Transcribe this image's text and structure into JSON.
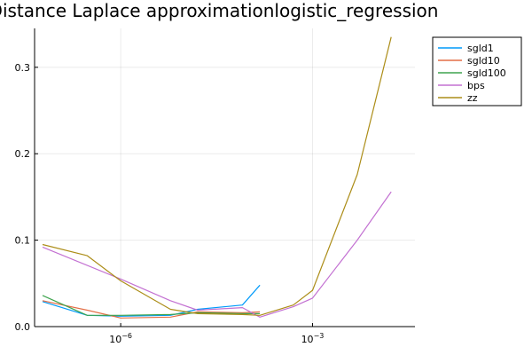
{
  "chart_data": {
    "type": "line",
    "title": "Distance Laplace approximationlogistic_regression",
    "xlabel": "",
    "ylabel": "",
    "x_scale": "log10",
    "xlim": [
      4.5e-08,
      0.04
    ],
    "ylim": [
      0,
      0.345
    ],
    "grid": true,
    "legend_position": "top-right",
    "x_ticks": [
      {
        "value": 1e-06,
        "base": "10",
        "exponent": "−6"
      },
      {
        "value": 0.001,
        "base": "10",
        "exponent": "−3"
      }
    ],
    "y_ticks": [
      {
        "value": 0.0,
        "label": "0.0"
      },
      {
        "value": 0.1,
        "label": "0.1"
      },
      {
        "value": 0.2,
        "label": "0.2"
      },
      {
        "value": 0.3,
        "label": "0.3"
      }
    ],
    "series": [
      {
        "name": "sgld1",
        "color": "#009AFA",
        "points": [
          [
            6e-08,
            0.029
          ],
          [
            3e-07,
            0.013
          ],
          [
            1e-06,
            0.012
          ],
          [
            6e-06,
            0.013
          ],
          [
            1.6e-05,
            0.02
          ],
          [
            8e-05,
            0.025
          ],
          [
            0.00015,
            0.048
          ]
        ]
      },
      {
        "name": "sgld10",
        "color": "#E36F47",
        "points": [
          [
            6e-08,
            0.03
          ],
          [
            3e-07,
            0.019
          ],
          [
            1e-06,
            0.01
          ],
          [
            6e-06,
            0.011
          ],
          [
            1.6e-05,
            0.017
          ],
          [
            8e-05,
            0.016
          ],
          [
            0.00015,
            0.017
          ]
        ]
      },
      {
        "name": "sgld100",
        "color": "#3EA44E",
        "points": [
          [
            6e-08,
            0.036
          ],
          [
            3e-07,
            0.013
          ],
          [
            1e-06,
            0.013
          ],
          [
            6e-06,
            0.014
          ],
          [
            1.6e-05,
            0.016
          ],
          [
            8e-05,
            0.015
          ],
          [
            0.00015,
            0.015
          ]
        ]
      },
      {
        "name": "bps",
        "color": "#C371D2",
        "points": [
          [
            6e-08,
            0.092
          ],
          [
            1e-06,
            0.055
          ],
          [
            6e-06,
            0.03
          ],
          [
            1.6e-05,
            0.019
          ],
          [
            8e-05,
            0.022
          ],
          [
            0.00015,
            0.011
          ],
          [
            0.0005,
            0.023
          ],
          [
            0.001,
            0.033
          ],
          [
            0.005,
            0.1
          ],
          [
            0.017,
            0.156
          ]
        ]
      },
      {
        "name": "zz",
        "color": "#AC8D18",
        "points": [
          [
            6e-08,
            0.095
          ],
          [
            3e-07,
            0.082
          ],
          [
            1e-06,
            0.053
          ],
          [
            6e-06,
            0.02
          ],
          [
            1.6e-05,
            0.015
          ],
          [
            8e-05,
            0.014
          ],
          [
            0.00015,
            0.013
          ],
          [
            0.0005,
            0.025
          ],
          [
            0.001,
            0.042
          ],
          [
            0.005,
            0.176
          ],
          [
            0.017,
            0.335
          ]
        ]
      }
    ]
  }
}
